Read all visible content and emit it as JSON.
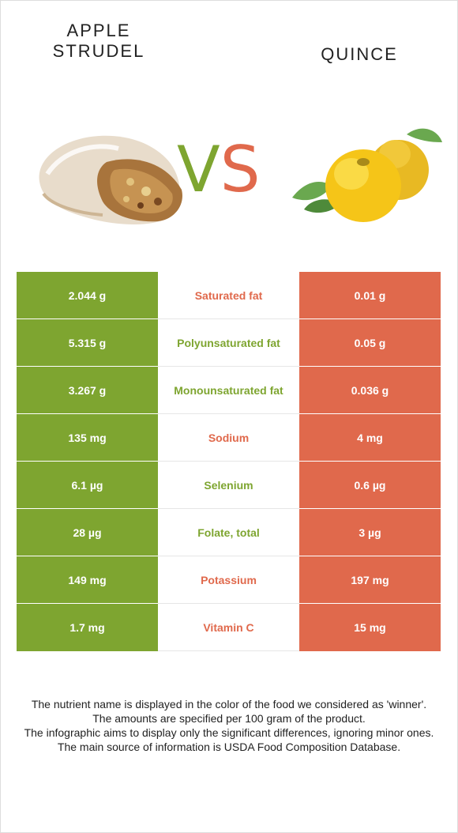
{
  "titles": {
    "left": "APPLE\nSTRUDEL",
    "right": "QUINCE"
  },
  "vs": {
    "v": "V",
    "s": "S"
  },
  "colors": {
    "green": "#7ea530",
    "red": "#e0694c"
  },
  "rows": [
    {
      "left": "2.044 g",
      "nutrient": "Saturated fat",
      "right": "0.01 g",
      "winner": "right"
    },
    {
      "left": "5.315 g",
      "nutrient": "Polyunsaturated fat",
      "right": "0.05 g",
      "winner": "left"
    },
    {
      "left": "3.267 g",
      "nutrient": "Monounsaturated fat",
      "right": "0.036 g",
      "winner": "left"
    },
    {
      "left": "135 mg",
      "nutrient": "Sodium",
      "right": "4 mg",
      "winner": "right"
    },
    {
      "left": "6.1 µg",
      "nutrient": "Selenium",
      "right": "0.6 µg",
      "winner": "left"
    },
    {
      "left": "28 µg",
      "nutrient": "Folate, total",
      "right": "3 µg",
      "winner": "left"
    },
    {
      "left": "149 mg",
      "nutrient": "Potassium",
      "right": "197 mg",
      "winner": "right"
    },
    {
      "left": "1.7 mg",
      "nutrient": "Vitamin C",
      "right": "15 mg",
      "winner": "right"
    }
  ],
  "footer": {
    "line1": "The nutrient name is displayed in the color of the food we considered as 'winner'.",
    "line2": "The amounts are specified per 100 gram of the product.",
    "line3": "The infographic aims to display only the significant differences, ignoring minor ones.",
    "line4": "The main source of information is USDA Food Composition Database."
  }
}
